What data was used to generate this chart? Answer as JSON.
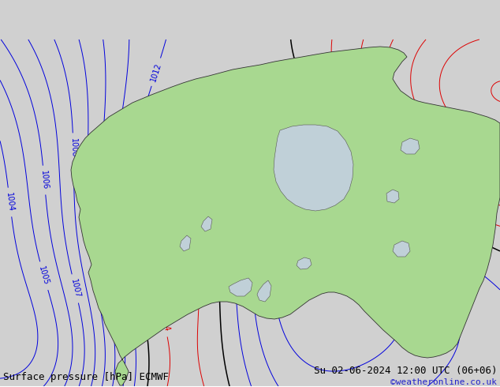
{
  "title_left": "Surface pressure [hPa] ECMWF",
  "title_right": "Su 02-06-2024 12:00 UTC (06+06)",
  "credit": "©weatheronline.co.uk",
  "bg_color": "#d0d0d0",
  "land_color": "#a8d890",
  "sea_color": "#d0d0d0",
  "lake_color": "#c0d0d8",
  "blue_color": "#0000dd",
  "red_color": "#dd0000",
  "black_color": "#000000",
  "label_fontsize": 7,
  "footer_fontsize": 9,
  "credit_color": "#2222cc",
  "figsize": [
    6.34,
    4.9
  ],
  "dpi": 100
}
